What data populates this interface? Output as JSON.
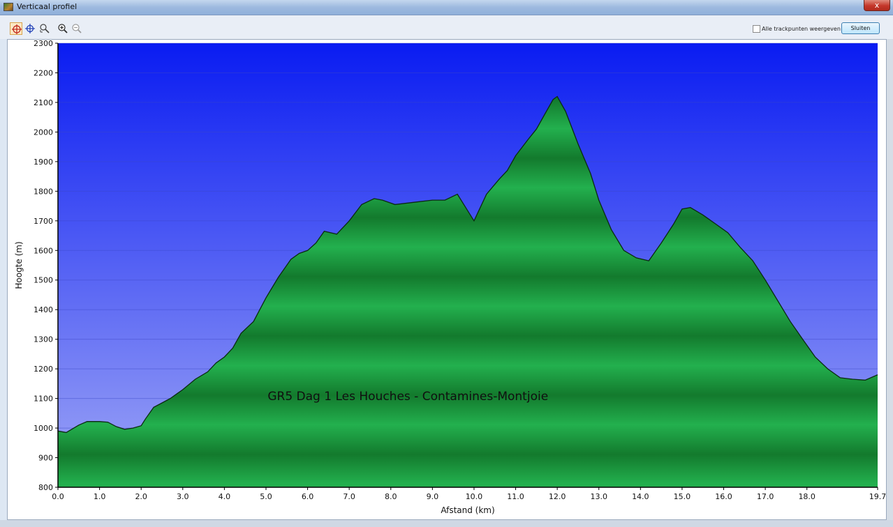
{
  "window": {
    "title": "Verticaal profiel",
    "close_symbol": "x"
  },
  "toolbar": {
    "tools": [
      {
        "icon": "crosshair-select-icon",
        "active": true
      },
      {
        "icon": "crosshair-icon",
        "active": false
      },
      {
        "icon": "pan-zoom-icon",
        "active": false
      },
      {
        "icon": "zoom-in-icon",
        "active": false
      },
      {
        "icon": "zoom-out-icon",
        "active": false
      }
    ],
    "show_all_trackpoints_label": "Alle trackpunten weergeven",
    "show_all_trackpoints_checked": false,
    "close_label": "Sluiten"
  },
  "chart_data": {
    "type": "area",
    "annotation": "GR5 Dag 1 Les Houches - Contamines-Montjoie",
    "xlabel": "Afstand  (km)",
    "ylabel": "Hoogte (m)",
    "xlim": [
      0,
      19.7
    ],
    "ylim": [
      800,
      2300
    ],
    "xticks": [
      0,
      1,
      2,
      3,
      4,
      5,
      6,
      7,
      8,
      9,
      10,
      11,
      12,
      13,
      14,
      15,
      16,
      17,
      18,
      19.7
    ],
    "xtick_labels": [
      "0.0",
      "1.0",
      "2.0",
      "3.0",
      "4.0",
      "5.0",
      "6.0",
      "7.0",
      "8.0",
      "9.0",
      "10.0",
      "11.0",
      "12.0",
      "13.0",
      "14.0",
      "15.0",
      "16.0",
      "17.0",
      "18.0",
      "19.7"
    ],
    "yticks": [
      800,
      900,
      1000,
      1100,
      1200,
      1300,
      1400,
      1500,
      1600,
      1700,
      1800,
      1900,
      2000,
      2100,
      2200,
      2300
    ],
    "grid": true,
    "colors": {
      "sky_top": "#0a1cf2",
      "sky_bottom": "#9ea6f6",
      "fill_dark": "#137a2d",
      "fill_light": "#23b04e",
      "outline": "#0b2a12",
      "annotation": "#101010"
    },
    "x": [
      0.0,
      0.2,
      0.5,
      0.7,
      1.0,
      1.2,
      1.4,
      1.6,
      1.8,
      2.0,
      2.1,
      2.3,
      2.5,
      2.7,
      3.0,
      3.3,
      3.6,
      3.8,
      4.0,
      4.2,
      4.4,
      4.7,
      5.0,
      5.3,
      5.6,
      5.8,
      6.0,
      6.2,
      6.4,
      6.7,
      7.0,
      7.3,
      7.6,
      7.8,
      8.1,
      8.4,
      8.7,
      9.0,
      9.3,
      9.6,
      9.8,
      10.0,
      10.3,
      10.6,
      10.8,
      11.0,
      11.3,
      11.5,
      11.7,
      11.9,
      12.0,
      12.2,
      12.5,
      12.8,
      13.0,
      13.3,
      13.6,
      13.9,
      14.2,
      14.5,
      14.8,
      15.0,
      15.2,
      15.5,
      15.8,
      16.1,
      16.4,
      16.7,
      17.0,
      17.3,
      17.6,
      17.9,
      18.2,
      18.5,
      18.8,
      19.1,
      19.4,
      19.7
    ],
    "y": [
      990,
      985,
      1010,
      1022,
      1022,
      1020,
      1005,
      996,
      1000,
      1008,
      1030,
      1070,
      1085,
      1100,
      1130,
      1165,
      1190,
      1220,
      1240,
      1270,
      1320,
      1360,
      1440,
      1510,
      1570,
      1590,
      1600,
      1625,
      1665,
      1655,
      1700,
      1755,
      1775,
      1770,
      1755,
      1760,
      1765,
      1770,
      1770,
      1790,
      1745,
      1700,
      1790,
      1840,
      1870,
      1920,
      1975,
      2010,
      2060,
      2110,
      2120,
      2070,
      1960,
      1860,
      1770,
      1670,
      1600,
      1575,
      1565,
      1625,
      1690,
      1740,
      1745,
      1720,
      1690,
      1660,
      1610,
      1565,
      1500,
      1430,
      1360,
      1300,
      1240,
      1200,
      1170,
      1165,
      1162,
      1180
    ]
  }
}
